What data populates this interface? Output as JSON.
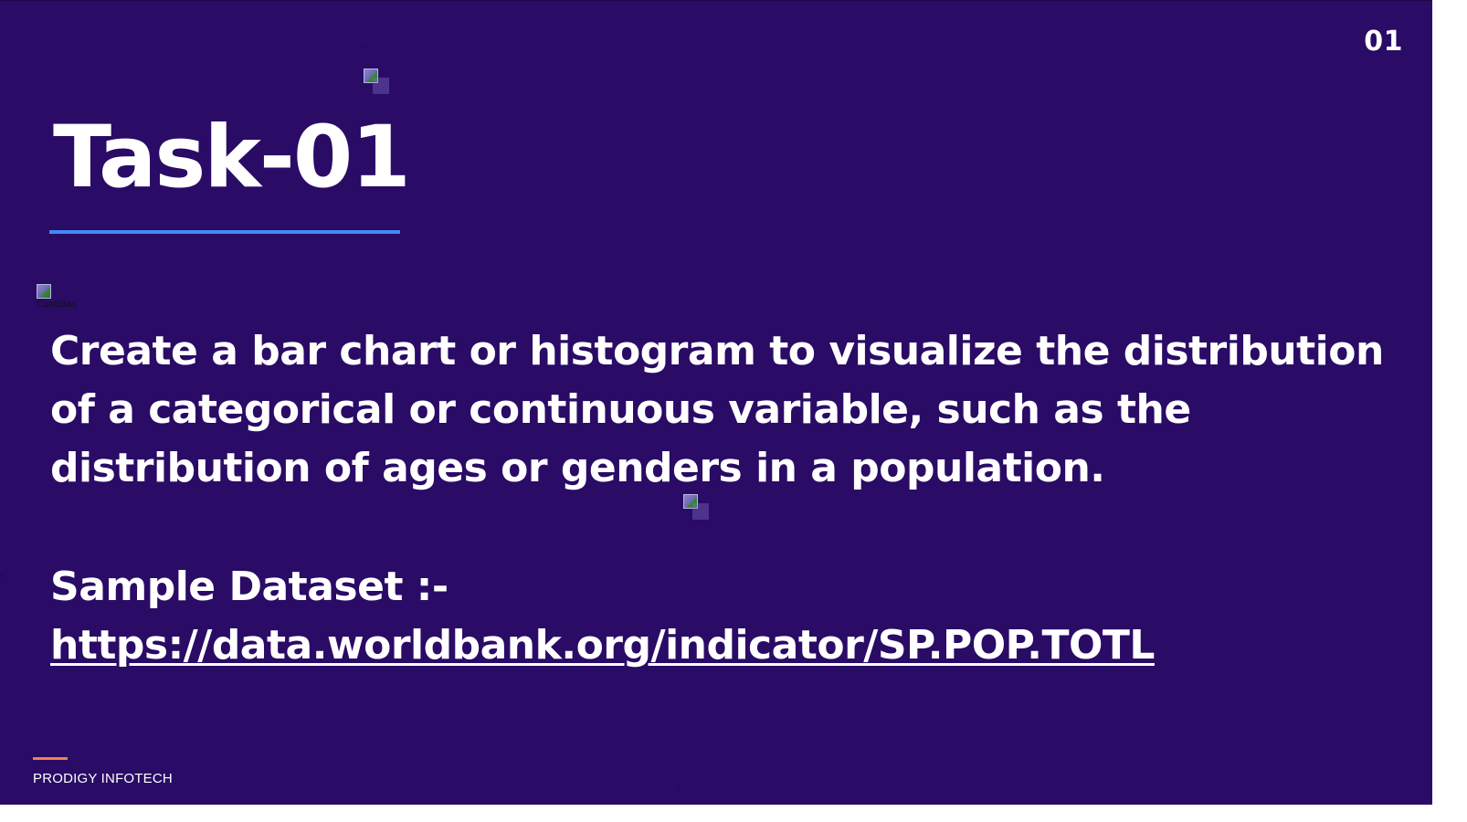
{
  "slide": {
    "page_number": "01",
    "title": "Task-01",
    "body": "Create a bar chart or histogram to visualize the distribution of a categorical or continuous variable, such as the distribution of ages or genders in a population.",
    "dataset_label": "Sample Dataset :-",
    "dataset_link": "https://data.worldbank.org/indicator/SP.POP.TOTL",
    "footer_brand": "PRODIGY INFOTECH",
    "broken_image_alt": "Comillas"
  },
  "colors": {
    "background": "#2a0b66",
    "text": "#ffffff",
    "title_underline": "#3d8bf5",
    "footer_accent": "#f0804a"
  },
  "icons": {
    "broken_image": "broken-image-icon"
  }
}
